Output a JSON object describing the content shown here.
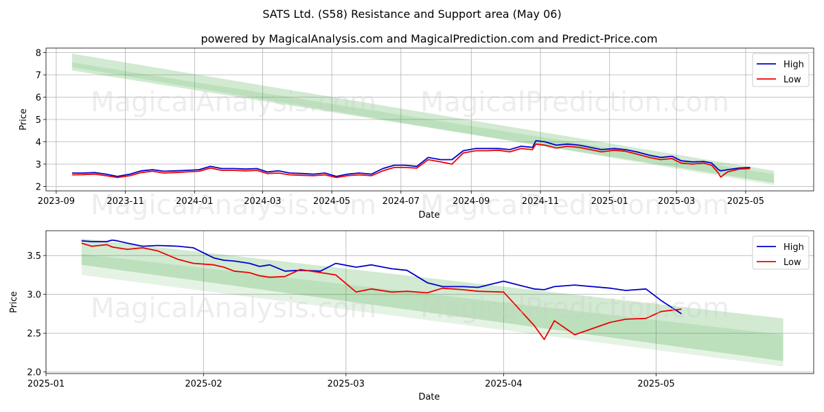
{
  "title": "SATS Ltd. (S58) Resistance and Support area (May 06)",
  "subtitle": "powered by MagicalAnalysis.com and MagicalPrediction.com and Predict-Price.com",
  "watermarks": [
    "MagicalAnalysis.com",
    "MagicalPrediction.com"
  ],
  "colors": {
    "high": "#0000cc",
    "low": "#ee0000",
    "band": "#2ca02c",
    "grid": "#b0b0b0"
  },
  "chart_data": [
    {
      "type": "line",
      "xlabel": "Date",
      "ylabel": "Price",
      "xlim": [
        "2023-08-23",
        "2025-06-30"
      ],
      "ylim": [
        1.8,
        8.2
      ],
      "x_ticks": [
        "2023-09",
        "2023-11",
        "2024-01",
        "2024-03",
        "2024-05",
        "2024-07",
        "2024-09",
        "2024-11",
        "2025-01",
        "2025-03",
        "2025-05"
      ],
      "y_ticks": [
        2,
        3,
        4,
        5,
        6,
        7,
        8
      ],
      "legend": [
        "High",
        "Low"
      ],
      "legend_loc": "upper right",
      "bands": [
        {
          "x": [
            "2023-09-15",
            "2025-05-26"
          ],
          "upper": [
            7.95,
            2.7
          ],
          "lower": [
            7.2,
            2.15
          ],
          "alpha": 0.22
        },
        {
          "x": [
            "2023-09-15",
            "2025-05-26"
          ],
          "upper": [
            7.55,
            2.55
          ],
          "lower": [
            7.35,
            2.05
          ],
          "alpha": 0.12
        }
      ],
      "series": [
        {
          "name": "High",
          "x": [
            "2023-09-15",
            "2023-09-25",
            "2023-10-05",
            "2023-10-15",
            "2023-10-25",
            "2023-11-05",
            "2023-11-15",
            "2023-11-25",
            "2023-12-05",
            "2023-12-15",
            "2023-12-25",
            "2024-01-05",
            "2024-01-15",
            "2024-01-25",
            "2024-02-05",
            "2024-02-15",
            "2024-02-25",
            "2024-03-05",
            "2024-03-15",
            "2024-03-25",
            "2024-04-05",
            "2024-04-15",
            "2024-04-25",
            "2024-05-05",
            "2024-05-15",
            "2024-05-25",
            "2024-06-05",
            "2024-06-15",
            "2024-06-25",
            "2024-07-05",
            "2024-07-15",
            "2024-07-25",
            "2024-08-05",
            "2024-08-15",
            "2024-08-25",
            "2024-09-05",
            "2024-09-15",
            "2024-09-25",
            "2024-10-05",
            "2024-10-15",
            "2024-10-25",
            "2024-10-28",
            "2024-11-05",
            "2024-11-15",
            "2024-11-25",
            "2024-12-05",
            "2024-12-15",
            "2024-12-25",
            "2025-01-05",
            "2025-01-15",
            "2025-01-25",
            "2025-02-05",
            "2025-02-15",
            "2025-02-25",
            "2025-03-05",
            "2025-03-15",
            "2025-03-25",
            "2025-04-01",
            "2025-04-07",
            "2025-04-09",
            "2025-04-15",
            "2025-04-25",
            "2025-05-05"
          ],
          "values": [
            2.6,
            2.6,
            2.62,
            2.55,
            2.45,
            2.55,
            2.7,
            2.75,
            2.68,
            2.7,
            2.72,
            2.75,
            2.9,
            2.8,
            2.8,
            2.78,
            2.8,
            2.65,
            2.7,
            2.6,
            2.58,
            2.55,
            2.6,
            2.45,
            2.55,
            2.6,
            2.55,
            2.8,
            2.95,
            2.95,
            2.9,
            3.3,
            3.2,
            3.2,
            3.6,
            3.7,
            3.7,
            3.7,
            3.65,
            3.8,
            3.75,
            4.05,
            4.0,
            3.85,
            3.9,
            3.85,
            3.75,
            3.65,
            3.7,
            3.65,
            3.55,
            3.4,
            3.3,
            3.35,
            3.15,
            3.1,
            3.12,
            3.05,
            2.75,
            2.7,
            2.75,
            2.82,
            2.85
          ]
        },
        {
          "name": "Low",
          "x": [
            "2023-09-15",
            "2023-09-25",
            "2023-10-05",
            "2023-10-15",
            "2023-10-25",
            "2023-11-05",
            "2023-11-15",
            "2023-11-25",
            "2023-12-05",
            "2023-12-15",
            "2023-12-25",
            "2024-01-05",
            "2024-01-15",
            "2024-01-25",
            "2024-02-05",
            "2024-02-15",
            "2024-02-25",
            "2024-03-05",
            "2024-03-15",
            "2024-03-25",
            "2024-04-05",
            "2024-04-15",
            "2024-04-25",
            "2024-05-05",
            "2024-05-15",
            "2024-05-25",
            "2024-06-05",
            "2024-06-15",
            "2024-06-25",
            "2024-07-05",
            "2024-07-15",
            "2024-07-25",
            "2024-08-05",
            "2024-08-15",
            "2024-08-25",
            "2024-09-05",
            "2024-09-15",
            "2024-09-25",
            "2024-10-05",
            "2024-10-15",
            "2024-10-25",
            "2024-10-28",
            "2024-11-05",
            "2024-11-15",
            "2024-11-25",
            "2024-12-05",
            "2024-12-15",
            "2024-12-25",
            "2025-01-05",
            "2025-01-15",
            "2025-01-25",
            "2025-02-05",
            "2025-02-15",
            "2025-02-25",
            "2025-03-05",
            "2025-03-15",
            "2025-03-25",
            "2025-04-01",
            "2025-04-07",
            "2025-04-09",
            "2025-04-15",
            "2025-04-25",
            "2025-05-05"
          ],
          "values": [
            2.52,
            2.53,
            2.55,
            2.48,
            2.4,
            2.48,
            2.62,
            2.68,
            2.6,
            2.62,
            2.65,
            2.68,
            2.82,
            2.72,
            2.72,
            2.7,
            2.72,
            2.58,
            2.6,
            2.52,
            2.5,
            2.48,
            2.52,
            2.4,
            2.48,
            2.52,
            2.48,
            2.7,
            2.85,
            2.85,
            2.82,
            3.2,
            3.1,
            3.0,
            3.5,
            3.6,
            3.6,
            3.62,
            3.55,
            3.7,
            3.65,
            3.9,
            3.85,
            3.72,
            3.8,
            3.75,
            3.65,
            3.55,
            3.62,
            3.58,
            3.45,
            3.3,
            3.2,
            3.25,
            3.05,
            3.0,
            3.05,
            2.95,
            2.6,
            2.42,
            2.65,
            2.78,
            2.8
          ]
        }
      ]
    },
    {
      "type": "line",
      "xlabel": "Date",
      "ylabel": "Price",
      "xlim": [
        "2025-01-01",
        "2025-06-01"
      ],
      "ylim": [
        1.98,
        3.82
      ],
      "x_ticks": [
        "2025-01",
        "2025-02",
        "2025-03",
        "2025-04",
        "2025-05"
      ],
      "y_ticks": [
        2.0,
        2.5,
        3.0,
        3.5
      ],
      "legend": [
        "High",
        "Low"
      ],
      "legend_loc": "upper right",
      "bands": [
        {
          "x": [
            "2025-01-08",
            "2025-05-26"
          ],
          "upper": [
            3.72,
            2.69
          ],
          "lower": [
            3.38,
            2.14
          ],
          "alpha": 0.22
        },
        {
          "x": [
            "2025-01-08",
            "2025-05-26"
          ],
          "upper": [
            3.52,
            2.48
          ],
          "lower": [
            3.25,
            2.07
          ],
          "alpha": 0.12
        }
      ],
      "series": [
        {
          "name": "High",
          "x": [
            "2025-01-08",
            "2025-01-10",
            "2025-01-13",
            "2025-01-14",
            "2025-01-15",
            "2025-01-17",
            "2025-01-20",
            "2025-01-23",
            "2025-01-27",
            "2025-01-30",
            "2025-02-03",
            "2025-02-05",
            "2025-02-07",
            "2025-02-10",
            "2025-02-12",
            "2025-02-14",
            "2025-02-17",
            "2025-02-20",
            "2025-02-24",
            "2025-02-27",
            "2025-03-03",
            "2025-03-06",
            "2025-03-10",
            "2025-03-13",
            "2025-03-17",
            "2025-03-20",
            "2025-03-24",
            "2025-03-27",
            "2025-04-01",
            "2025-04-07",
            "2025-04-09",
            "2025-04-11",
            "2025-04-15",
            "2025-04-22",
            "2025-04-25",
            "2025-04-29",
            "2025-05-02",
            "2025-05-06"
          ],
          "values": [
            3.69,
            3.68,
            3.68,
            3.7,
            3.69,
            3.66,
            3.62,
            3.63,
            3.62,
            3.6,
            3.47,
            3.44,
            3.43,
            3.4,
            3.36,
            3.38,
            3.3,
            3.31,
            3.3,
            3.4,
            3.35,
            3.38,
            3.33,
            3.31,
            3.15,
            3.1,
            3.1,
            3.09,
            3.17,
            3.07,
            3.06,
            3.1,
            3.12,
            3.08,
            3.05,
            3.07,
            2.92,
            2.75
          ]
        },
        {
          "name": "Low",
          "x": [
            "2025-01-08",
            "2025-01-10",
            "2025-01-13",
            "2025-01-14",
            "2025-01-15",
            "2025-01-17",
            "2025-01-20",
            "2025-01-23",
            "2025-01-27",
            "2025-01-30",
            "2025-02-03",
            "2025-02-05",
            "2025-02-07",
            "2025-02-10",
            "2025-02-12",
            "2025-02-14",
            "2025-02-17",
            "2025-02-20",
            "2025-02-24",
            "2025-02-27",
            "2025-03-03",
            "2025-03-06",
            "2025-03-10",
            "2025-03-13",
            "2025-03-17",
            "2025-03-20",
            "2025-03-24",
            "2025-03-27",
            "2025-04-01",
            "2025-04-07",
            "2025-04-09",
            "2025-04-11",
            "2025-04-15",
            "2025-04-22",
            "2025-04-25",
            "2025-04-29",
            "2025-05-02",
            "2025-05-06"
          ],
          "values": [
            3.66,
            3.62,
            3.64,
            3.61,
            3.6,
            3.58,
            3.6,
            3.56,
            3.45,
            3.4,
            3.38,
            3.35,
            3.3,
            3.28,
            3.24,
            3.22,
            3.23,
            3.32,
            3.28,
            3.25,
            3.03,
            3.07,
            3.03,
            3.04,
            3.02,
            3.08,
            3.06,
            3.04,
            3.03,
            2.6,
            2.42,
            2.66,
            2.48,
            2.64,
            2.68,
            2.69,
            2.78,
            2.81
          ]
        }
      ]
    }
  ]
}
